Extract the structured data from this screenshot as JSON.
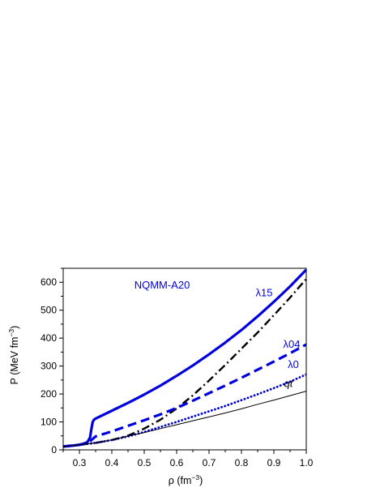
{
  "chart_data": {
    "type": "line",
    "title": "NQMM-A20",
    "xlabel": {
      "main": "ρ (fm",
      "sup": "−3",
      "close": ")"
    },
    "ylabel": {
      "main": "P (MeV fm",
      "sup": "−3",
      "close": ")"
    },
    "xlim": [
      0.25,
      1.0
    ],
    "ylim": [
      0,
      650
    ],
    "x_ticks": [
      0.3,
      0.4,
      0.5,
      0.6,
      0.7,
      0.8,
      0.9,
      1.0
    ],
    "x_tick_labels": [
      "0.3",
      "0.4",
      "0.5",
      "0.6",
      "0.7",
      "0.8",
      "0.9",
      "1.0"
    ],
    "y_ticks": [
      0,
      100,
      200,
      300,
      400,
      500,
      600
    ],
    "y_tick_labels": [
      "0",
      "100",
      "200",
      "300",
      "400",
      "500",
      "600"
    ],
    "grid": false,
    "legend": "none",
    "series": [
      {
        "name": "λ15",
        "color": "#0000dd",
        "style": "solid",
        "width": 3.2,
        "x": [
          0.25,
          0.28,
          0.31,
          0.325,
          0.333,
          0.337,
          0.341,
          0.345,
          0.35,
          0.4,
          0.45,
          0.5,
          0.55,
          0.6,
          0.65,
          0.7,
          0.75,
          0.8,
          0.85,
          0.9,
          0.95,
          1.0
        ],
        "y": [
          12,
          15,
          20,
          28,
          45,
          75,
          100,
          108,
          112,
          140,
          168,
          198,
          230,
          265,
          302,
          342,
          384,
          429,
          478,
          530,
          585,
          645
        ]
      },
      {
        "name": "",
        "color": "#000000",
        "style": "dashdot",
        "width": 2.4,
        "x": [
          0.25,
          0.3,
          0.35,
          0.4,
          0.45,
          0.5,
          0.55,
          0.6,
          0.65,
          0.7,
          0.75,
          0.8,
          0.85,
          0.9,
          0.95,
          1.0
        ],
        "y": [
          12,
          18,
          25,
          35,
          51,
          76,
          108,
          148,
          195,
          248,
          304,
          362,
          420,
          482,
          545,
          612
        ]
      },
      {
        "name": "λ04",
        "color": "#0000dd",
        "style": "dashed",
        "width": 3.2,
        "x": [
          0.25,
          0.3,
          0.33,
          0.35,
          0.4,
          0.45,
          0.5,
          0.55,
          0.6,
          0.65,
          0.7,
          0.75,
          0.8,
          0.85,
          0.9,
          0.95,
          1.0
        ],
        "y": [
          12,
          18,
          28,
          48,
          66,
          86,
          106,
          127,
          150,
          176,
          203,
          230,
          258,
          287,
          316,
          346,
          377
        ]
      },
      {
        "name": "λ0",
        "color": "#0000dd",
        "style": "dotted",
        "width": 2.8,
        "x": [
          0.25,
          0.3,
          0.35,
          0.4,
          0.45,
          0.5,
          0.55,
          0.6,
          0.65,
          0.7,
          0.75,
          0.8,
          0.85,
          0.9,
          0.95,
          1.0
        ],
        "y": [
          12,
          18,
          25,
          35,
          48,
          64,
          82,
          100,
          119,
          138,
          157,
          178,
          199,
          221,
          244,
          270
        ]
      },
      {
        "name": "qt",
        "color": "#000000",
        "style": "solid",
        "width": 1.0,
        "x": [
          0.25,
          0.3,
          0.35,
          0.4,
          0.45,
          0.5,
          0.55,
          0.6,
          0.65,
          0.7,
          0.75,
          0.8,
          0.85,
          0.9,
          0.95,
          1.0
        ],
        "y": [
          12,
          18,
          25,
          36,
          49,
          62,
          76,
          90,
          104,
          118,
          132,
          147,
          163,
          178,
          194,
          210
        ]
      }
    ],
    "annotations": [
      {
        "text": "NQMM-A20",
        "color": "#0000dd",
        "x": 0.555,
        "y": 578,
        "style": "normal"
      },
      {
        "text": "λ15",
        "color": "#0000dd",
        "x": 0.87,
        "y": 550,
        "style": "normal"
      },
      {
        "text": "λ04",
        "color": "#0000dd",
        "x": 0.955,
        "y": 365,
        "style": "normal"
      },
      {
        "text": "λ0",
        "color": "#0000dd",
        "x": 0.96,
        "y": 293,
        "style": "normal"
      },
      {
        "text": "qt",
        "color": "#000000",
        "x": 0.945,
        "y": 225,
        "style": "italic"
      }
    ]
  }
}
